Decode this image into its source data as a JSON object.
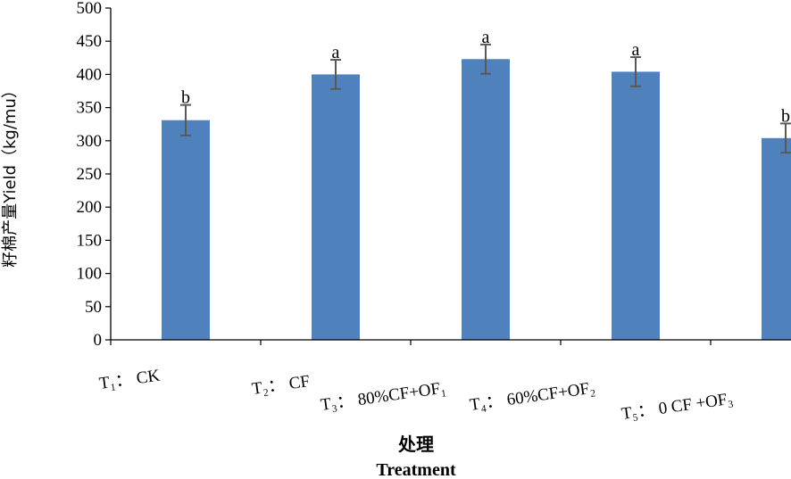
{
  "chart_data": {
    "type": "bar",
    "categories": [
      "T₁： CK",
      "T₂： CF",
      "T₃： 80%CF+OF₁",
      "T₄： 60%CF+OF₂",
      "T₅： 0 CF +OF₃"
    ],
    "values": [
      331,
      400,
      423,
      404,
      304
    ],
    "errors": [
      23,
      22,
      22,
      22,
      22
    ],
    "significance": [
      "b",
      "a",
      "a",
      "a",
      "b"
    ],
    "ylabel": "籽棉产量Yield（kg/mu）",
    "xlabel": "处理",
    "xlabel2": "Treatment",
    "ylim": [
      0,
      500
    ],
    "yticks": [
      0,
      50,
      100,
      150,
      200,
      250,
      300,
      350,
      400,
      450,
      500
    ],
    "bar_color": "#4F81BD",
    "error_color": "#595959",
    "grid": false,
    "legend": "none"
  }
}
